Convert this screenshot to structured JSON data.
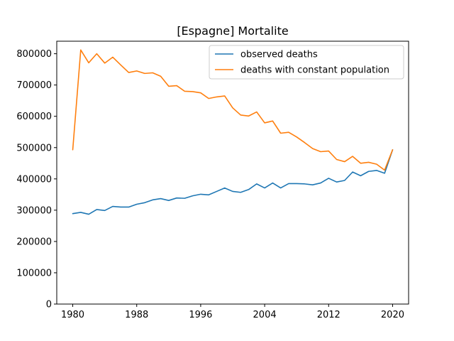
{
  "chart_data": {
    "type": "line",
    "title": "[Espagne] Mortalite",
    "xlabel": "",
    "ylabel": "",
    "x": [
      1980,
      1981,
      1982,
      1983,
      1984,
      1985,
      1986,
      1987,
      1988,
      1989,
      1990,
      1991,
      1992,
      1993,
      1994,
      1995,
      1996,
      1997,
      1998,
      1999,
      2000,
      2001,
      2002,
      2003,
      2004,
      2005,
      2006,
      2007,
      2008,
      2009,
      2010,
      2011,
      2012,
      2013,
      2014,
      2015,
      2016,
      2017,
      2018,
      2019,
      2020
    ],
    "xlim": [
      1978,
      2022
    ],
    "ylim": [
      0,
      840000
    ],
    "x_ticks": [
      1980,
      1988,
      1996,
      2004,
      2012,
      2020
    ],
    "y_ticks": [
      0,
      100000,
      200000,
      300000,
      400000,
      500000,
      600000,
      700000,
      800000
    ],
    "grid": false,
    "legend_position": "top-right",
    "series": [
      {
        "name": "observed deaths",
        "color": "#1f77b4",
        "values": [
          289000,
          293000,
          287000,
          302000,
          299000,
          312000,
          310000,
          310000,
          319000,
          324000,
          333000,
          337000,
          331000,
          339000,
          338000,
          346000,
          351000,
          349000,
          360000,
          371000,
          360000,
          357000,
          366000,
          384000,
          371000,
          387000,
          371000,
          385000,
          385000,
          384000,
          381000,
          387000,
          402000,
          390000,
          395000,
          422000,
          410000,
          424000,
          427000,
          418000,
          493000
        ]
      },
      {
        "name": "deaths with constant population",
        "color": "#ff7f0e",
        "values": [
          493000,
          812000,
          771000,
          800000,
          770000,
          789000,
          764000,
          740000,
          745000,
          737000,
          739000,
          728000,
          696000,
          698000,
          680000,
          679000,
          675000,
          657000,
          662000,
          665000,
          627000,
          604000,
          601000,
          614000,
          579000,
          585000,
          546000,
          549000,
          534000,
          516000,
          497000,
          487000,
          489000,
          462000,
          455000,
          472000,
          450000,
          453000,
          447000,
          428000,
          493000
        ]
      }
    ]
  }
}
